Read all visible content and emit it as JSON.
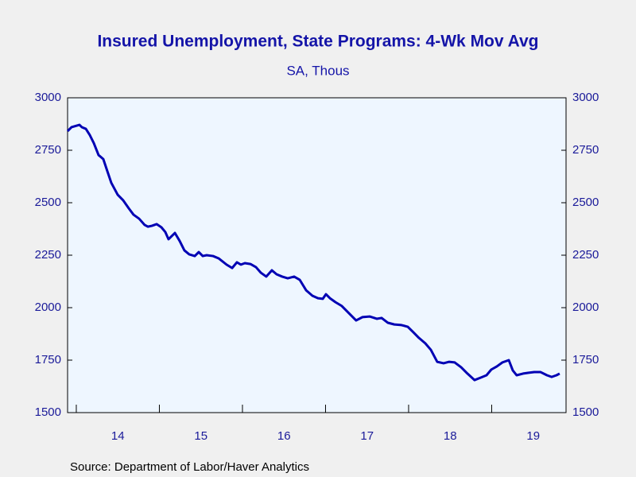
{
  "chart_data": {
    "type": "line",
    "title": "Insured Unemployment, State Programs: 4-Wk Mov Avg",
    "subtitle": "SA, Thous",
    "source": "Source:  Department of Labor/Haver Analytics",
    "x": [
      2013.895,
      2013.943,
      2014.038,
      2014.067,
      2014.115,
      2014.163,
      2014.211,
      2014.268,
      2014.325,
      2014.373,
      2014.421,
      2014.498,
      2014.565,
      2014.632,
      2014.689,
      2014.756,
      2014.823,
      2014.861,
      2014.909,
      2014.967,
      2015.024,
      2015.072,
      2015.11,
      2015.187,
      2015.244,
      2015.301,
      2015.359,
      2015.426,
      2015.474,
      2015.522,
      2015.569,
      2015.646,
      2015.713,
      2015.809,
      2015.876,
      2015.933,
      2015.981,
      2016.029,
      2016.096,
      2016.163,
      2016.22,
      2016.287,
      2016.354,
      2016.411,
      2016.478,
      2016.545,
      2016.622,
      2016.689,
      2016.766,
      2016.842,
      2016.909,
      2016.967,
      2017.005,
      2017.053,
      2017.12,
      2017.196,
      2017.273,
      2017.368,
      2017.445,
      2017.531,
      2017.617,
      2017.675,
      2017.751,
      2017.828,
      2017.914,
      2017.99,
      2018.057,
      2018.124,
      2018.201,
      2018.268,
      2018.344,
      2018.421,
      2018.488,
      2018.555,
      2018.632,
      2018.708,
      2018.794,
      2018.871,
      2018.938,
      2018.995,
      2019.062,
      2019.129,
      2019.206,
      2019.254,
      2019.301,
      2019.378,
      2019.445,
      2019.512,
      2019.589,
      2019.665,
      2019.722,
      2019.78,
      2019.818
    ],
    "series": [
      {
        "name": "Insured Unemployment",
        "color": "#0000b4",
        "values": [
          2841,
          2860,
          2871,
          2860,
          2852,
          2822,
          2784,
          2727,
          2708,
          2651,
          2595,
          2538,
          2511,
          2473,
          2443,
          2424,
          2394,
          2386,
          2390,
          2398,
          2383,
          2360,
          2326,
          2356,
          2318,
          2273,
          2254,
          2246,
          2265,
          2246,
          2250,
          2246,
          2235,
          2205,
          2189,
          2216,
          2205,
          2212,
          2208,
          2193,
          2167,
          2148,
          2178,
          2159,
          2148,
          2140,
          2148,
          2133,
          2083,
          2057,
          2045,
          2042,
          2064,
          2045,
          2026,
          2008,
          1977,
          1939,
          1955,
          1958,
          1947,
          1951,
          1928,
          1920,
          1917,
          1909,
          1883,
          1856,
          1830,
          1799,
          1742,
          1735,
          1742,
          1739,
          1716,
          1686,
          1655,
          1667,
          1678,
          1705,
          1720,
          1739,
          1750,
          1701,
          1678,
          1686,
          1690,
          1693,
          1693,
          1678,
          1670,
          1678,
          1686
        ]
      }
    ],
    "xlim": [
      2013.895,
      2019.895
    ],
    "xticks": [
      {
        "value": 2014.5,
        "label": "14"
      },
      {
        "value": 2015.5,
        "label": "15"
      },
      {
        "value": 2016.5,
        "label": "16"
      },
      {
        "value": 2017.5,
        "label": "17"
      },
      {
        "value": 2018.5,
        "label": "18"
      },
      {
        "value": 2019.5,
        "label": "19"
      }
    ],
    "xtick_marks": [
      2014,
      2015,
      2016,
      2017,
      2018,
      2019
    ],
    "ylim": [
      1500,
      3000
    ],
    "yticks": [
      1500,
      1750,
      2000,
      2250,
      2500,
      2750,
      3000
    ],
    "y2lim": [
      1500,
      3000
    ],
    "y2ticks": [
      1500,
      1750,
      2000,
      2250,
      2500,
      2750,
      3000
    ]
  }
}
